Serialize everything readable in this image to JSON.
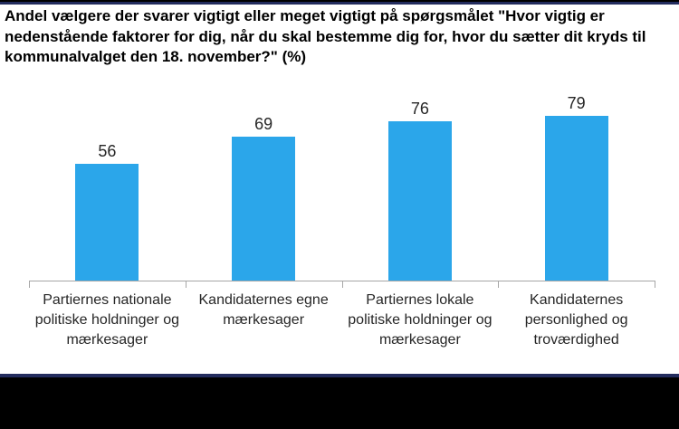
{
  "colors": {
    "bar": "#2ba6ea",
    "axis": "#a6a6a6",
    "navy_band": "#232c5e",
    "black_band": "#000000",
    "title_text": "#000000",
    "label_text": "#262626",
    "background": "#ffffff"
  },
  "chart_data": {
    "type": "bar",
    "title": "Andel vælgere der svarer vigtigt eller meget vigtigt på spørgsmålet \"Hvor vigtig er nedenstående faktorer for dig, når du skal bestemme dig for, hvor du sætter dit kryds til kommunalvalget den 18. november?\" (%)",
    "categories": [
      "Partiernes nationale politiske holdninger og mærkesager",
      "Kandidaternes egne mærkesager",
      "Partiernes lokale politiske holdninger og mærkesager",
      "Kandidaternes personlighed og troværdighed"
    ],
    "values": [
      56,
      69,
      76,
      79
    ],
    "xlabel": "",
    "ylabel": "",
    "ylim": [
      0,
      100
    ],
    "grid": false,
    "legend": false,
    "data_labels": true,
    "y_axis_visible": false,
    "tick_positions_pct": [
      0,
      25,
      50,
      75,
      100
    ]
  }
}
